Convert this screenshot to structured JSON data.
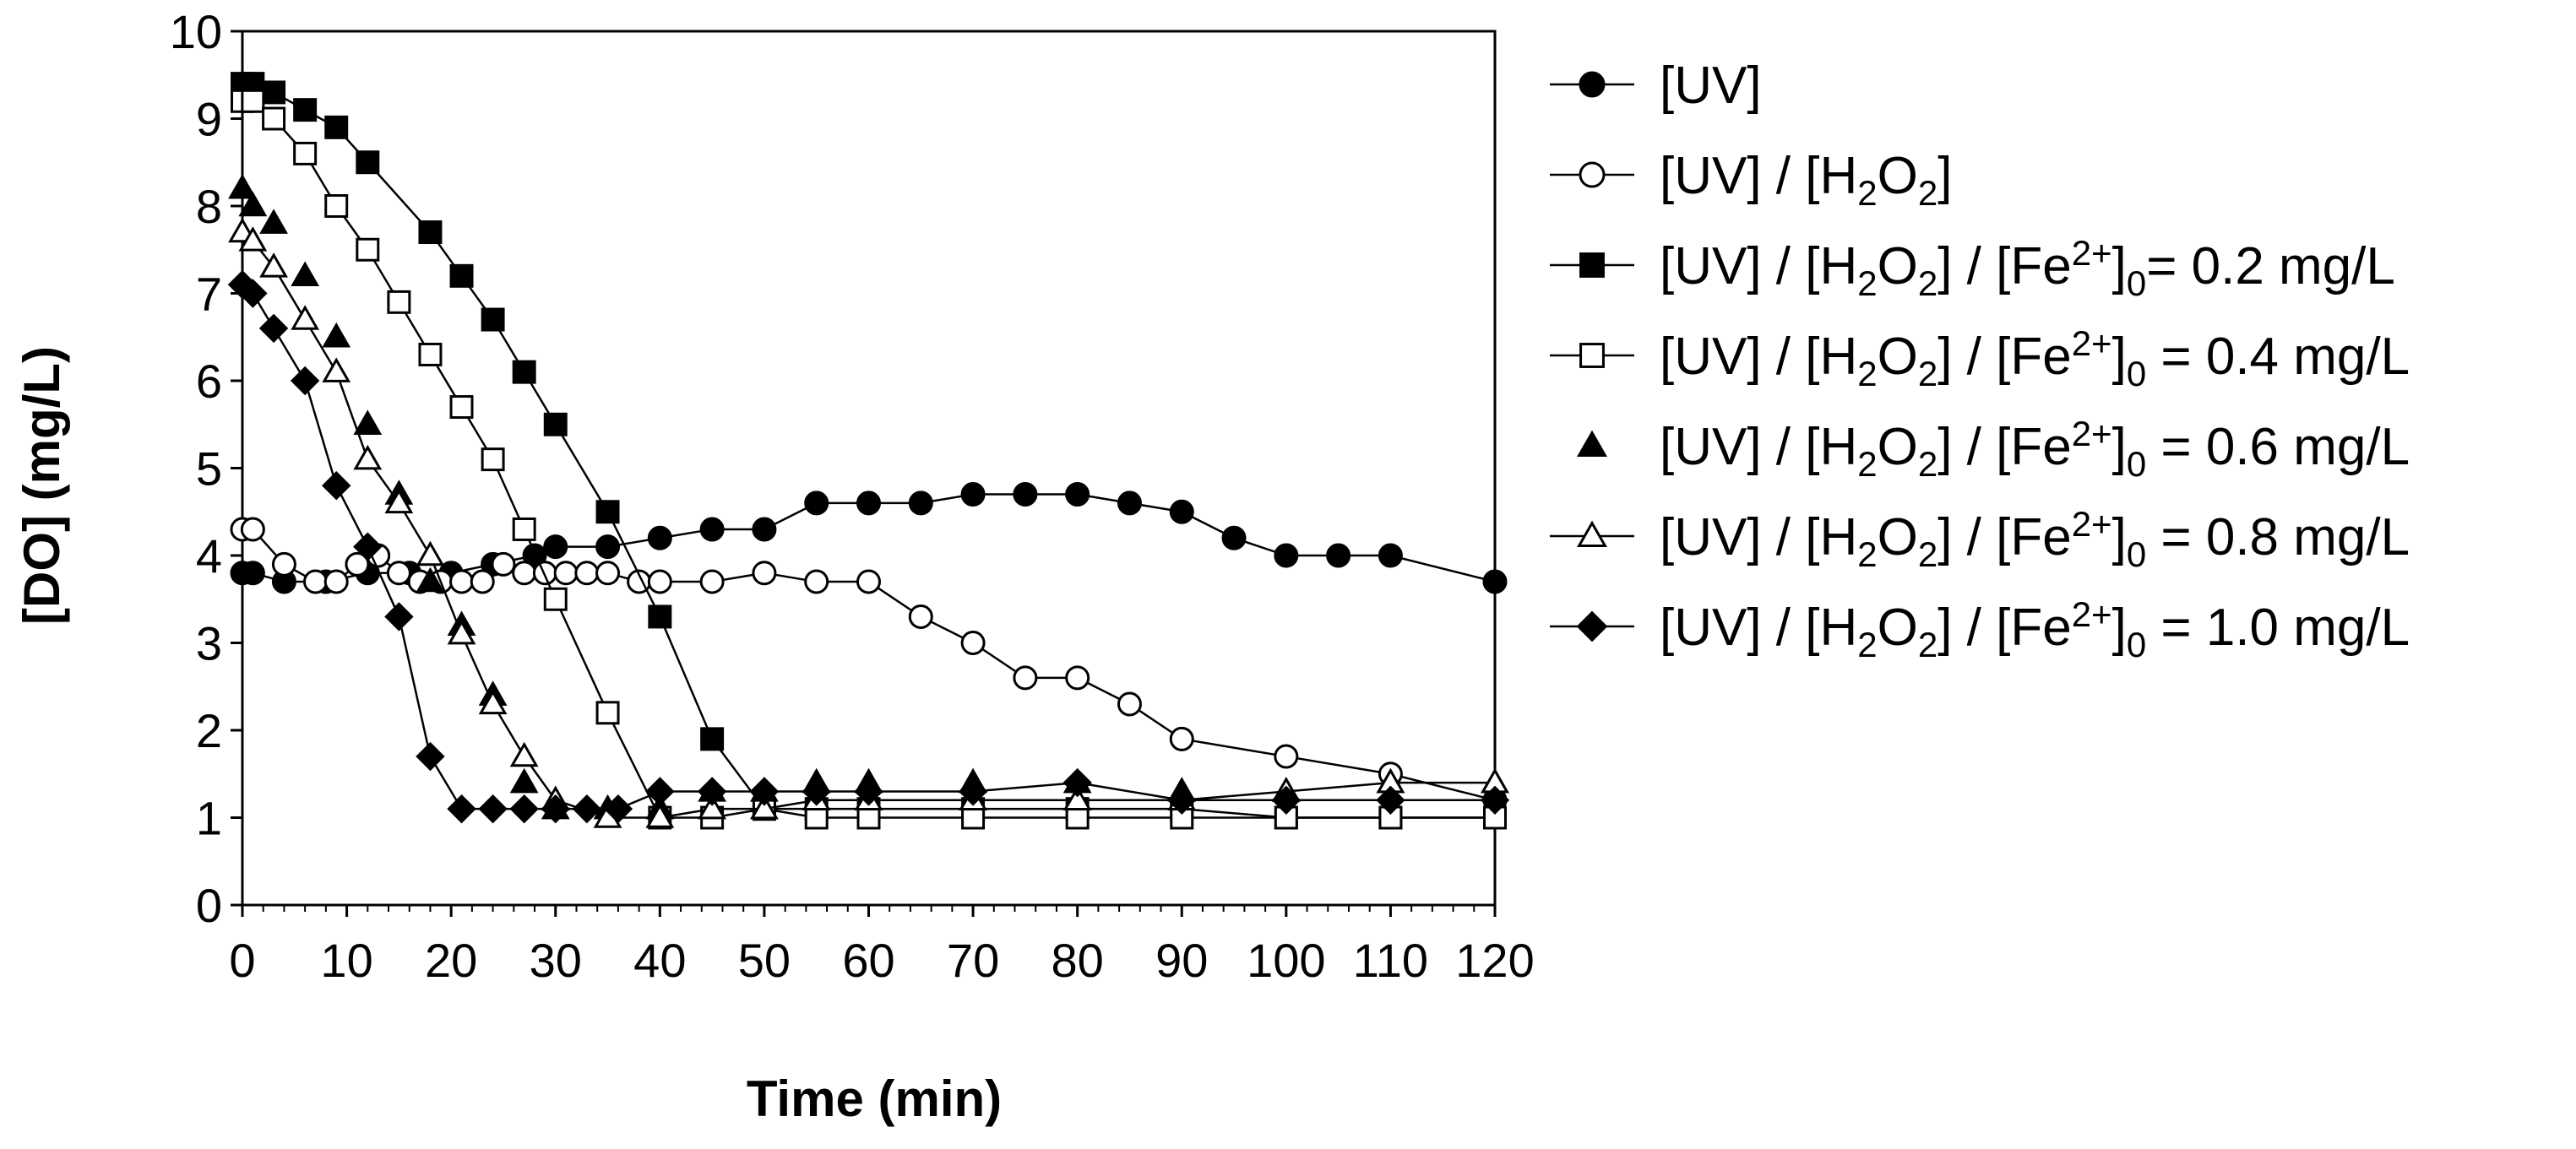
{
  "chart_data": {
    "type": "line",
    "title": "",
    "xlabel": "Time (min)",
    "ylabel": "[DO] (mg/L)",
    "xlim": [
      0,
      120
    ],
    "ylim": [
      0,
      10
    ],
    "x_ticks": [
      "0",
      "10",
      "20",
      "30",
      "40",
      "50",
      "60",
      "70",
      "80",
      "90",
      "100",
      "110",
      "120"
    ],
    "y_ticks": [
      "0",
      "1",
      "2",
      "3",
      "4",
      "5",
      "6",
      "7",
      "8",
      "9",
      "10"
    ],
    "grid": false,
    "legend_position": "right",
    "series": [
      {
        "key": "uv",
        "marker": "circle-filled",
        "line": true,
        "legend": [
          {
            "t": "[UV]"
          }
        ],
        "x": [
          0,
          1,
          4,
          8,
          12,
          16,
          20,
          24,
          28,
          30,
          35,
          40,
          45,
          50,
          55,
          60,
          65,
          70,
          75,
          80,
          85,
          90,
          95,
          100,
          105,
          110,
          120
        ],
        "y": [
          3.8,
          3.8,
          3.7,
          3.7,
          3.8,
          3.8,
          3.8,
          3.9,
          4.0,
          4.1,
          4.1,
          4.2,
          4.3,
          4.3,
          4.6,
          4.6,
          4.6,
          4.7,
          4.7,
          4.7,
          4.6,
          4.5,
          4.2,
          4.0,
          4.0,
          4.0,
          3.7
        ]
      },
      {
        "key": "uv_h2o2",
        "marker": "circle-open",
        "line": true,
        "legend": [
          {
            "t": "[UV] / [H"
          },
          {
            "t": "2",
            "sub": true
          },
          {
            "t": "O"
          },
          {
            "t": "2",
            "sub": true
          },
          {
            "t": "]"
          }
        ],
        "x": [
          0,
          1,
          4,
          7,
          9,
          11,
          13,
          15,
          17,
          19,
          21,
          23,
          25,
          27,
          29,
          31,
          33,
          35,
          38,
          40,
          45,
          50,
          55,
          60,
          65,
          70,
          75,
          80,
          85,
          90,
          100,
          110,
          120
        ],
        "y": [
          4.3,
          4.3,
          3.9,
          3.7,
          3.7,
          3.9,
          4.0,
          3.8,
          3.7,
          3.7,
          3.7,
          3.7,
          3.9,
          3.8,
          3.8,
          3.8,
          3.8,
          3.8,
          3.7,
          3.7,
          3.7,
          3.8,
          3.7,
          3.7,
          3.3,
          3.0,
          2.6,
          2.6,
          2.3,
          1.9,
          1.7,
          1.5,
          1.2
        ]
      },
      {
        "key": "fe02",
        "marker": "square-filled",
        "line": true,
        "legend": [
          {
            "t": "[UV] / [H"
          },
          {
            "t": "2",
            "sub": true
          },
          {
            "t": "O"
          },
          {
            "t": "2",
            "sub": true
          },
          {
            "t": "] / [Fe"
          },
          {
            "t": "2+",
            "sup": true
          },
          {
            "t": "]"
          },
          {
            "t": "0",
            "sub": true
          },
          {
            "t": "= 0.2 mg/L"
          }
        ],
        "x": [
          0,
          1,
          3,
          6,
          9,
          12,
          18,
          21,
          24,
          27,
          30,
          35,
          40,
          45,
          50,
          55,
          60,
          70,
          80,
          90,
          100,
          110,
          120
        ],
        "y": [
          9.4,
          9.4,
          9.3,
          9.1,
          8.9,
          8.5,
          7.7,
          7.2,
          6.7,
          6.1,
          5.5,
          4.5,
          3.3,
          1.9,
          1.1,
          1.1,
          1.1,
          1.1,
          1.1,
          1.1,
          1.0,
          1.0,
          1.0
        ]
      },
      {
        "key": "fe04",
        "marker": "square-open",
        "line": true,
        "legend": [
          {
            "t": "[UV] / [H"
          },
          {
            "t": "2",
            "sub": true
          },
          {
            "t": "O"
          },
          {
            "t": "2",
            "sub": true
          },
          {
            "t": "] / [Fe"
          },
          {
            "t": "2+",
            "sup": true
          },
          {
            "t": "]"
          },
          {
            "t": "0",
            "sub": true
          },
          {
            "t": " = 0.4 mg/L"
          }
        ],
        "x": [
          0,
          1,
          3,
          6,
          9,
          12,
          15,
          18,
          21,
          24,
          27,
          30,
          35,
          40,
          45,
          50,
          55,
          60,
          70,
          80,
          90,
          100,
          110,
          120
        ],
        "y": [
          9.2,
          9.2,
          9.0,
          8.6,
          8.0,
          7.5,
          6.9,
          6.3,
          5.7,
          5.1,
          4.3,
          3.5,
          2.2,
          1.0,
          1.0,
          1.1,
          1.0,
          1.0,
          1.0,
          1.0,
          1.0,
          1.0,
          1.0,
          1.0
        ]
      },
      {
        "key": "fe06",
        "marker": "triangle-filled",
        "line": false,
        "legend": [
          {
            "t": "[UV] / [H"
          },
          {
            "t": "2",
            "sub": true
          },
          {
            "t": "O"
          },
          {
            "t": "2",
            "sub": true
          },
          {
            "t": "] / [Fe"
          },
          {
            "t": "2+",
            "sup": true
          },
          {
            "t": "]"
          },
          {
            "t": "0",
            "sub": true
          },
          {
            "t": " = 0.6 mg/L"
          }
        ],
        "x": [
          0,
          1,
          3,
          6,
          9,
          12,
          15,
          18,
          21,
          24,
          27,
          30,
          35,
          40,
          45,
          50,
          55,
          60,
          70,
          80,
          90,
          100,
          110,
          120
        ],
        "y": [
          8.2,
          8.0,
          7.8,
          7.2,
          6.5,
          5.5,
          4.7,
          3.7,
          3.2,
          2.4,
          1.4,
          1.1,
          1.1,
          1.1,
          1.3,
          1.3,
          1.4,
          1.4,
          1.4,
          1.4,
          1.3,
          1.3,
          1.4,
          1.4
        ]
      },
      {
        "key": "fe08",
        "marker": "triangle-open",
        "line": true,
        "legend": [
          {
            "t": "[UV] / [H"
          },
          {
            "t": "2",
            "sub": true
          },
          {
            "t": "O"
          },
          {
            "t": "2",
            "sub": true
          },
          {
            "t": "] / [Fe"
          },
          {
            "t": "2+",
            "sup": true
          },
          {
            "t": "]"
          },
          {
            "t": "0",
            "sub": true
          },
          {
            "t": " = 0.8 mg/L"
          }
        ],
        "x": [
          0,
          1,
          3,
          6,
          9,
          12,
          15,
          18,
          21,
          24,
          27,
          30,
          35,
          40,
          45,
          50,
          55,
          60,
          70,
          80,
          90,
          100,
          110,
          120
        ],
        "y": [
          7.7,
          7.6,
          7.3,
          6.7,
          6.1,
          5.1,
          4.6,
          4.0,
          3.1,
          2.3,
          1.7,
          1.2,
          1.0,
          1.0,
          1.1,
          1.1,
          1.2,
          1.2,
          1.2,
          1.2,
          1.2,
          1.3,
          1.4,
          1.4
        ]
      },
      {
        "key": "fe10",
        "marker": "diamond-filled",
        "line": true,
        "legend": [
          {
            "t": "[UV] / [H"
          },
          {
            "t": "2",
            "sub": true
          },
          {
            "t": "O"
          },
          {
            "t": "2",
            "sub": true
          },
          {
            "t": "] / [Fe"
          },
          {
            "t": "2+",
            "sup": true
          },
          {
            "t": "]"
          },
          {
            "t": "0",
            "sub": true
          },
          {
            "t": " = 1.0 mg/L"
          }
        ],
        "x": [
          0,
          1,
          3,
          6,
          9,
          12,
          15,
          18,
          21,
          24,
          27,
          30,
          33,
          36,
          40,
          45,
          50,
          55,
          60,
          70,
          80,
          90,
          100,
          110,
          120
        ],
        "y": [
          7.1,
          7.0,
          6.6,
          6.0,
          4.8,
          4.1,
          3.3,
          1.7,
          1.1,
          1.1,
          1.1,
          1.1,
          1.1,
          1.1,
          1.3,
          1.3,
          1.3,
          1.3,
          1.3,
          1.3,
          1.4,
          1.2,
          1.2,
          1.2,
          1.2
        ]
      }
    ]
  }
}
